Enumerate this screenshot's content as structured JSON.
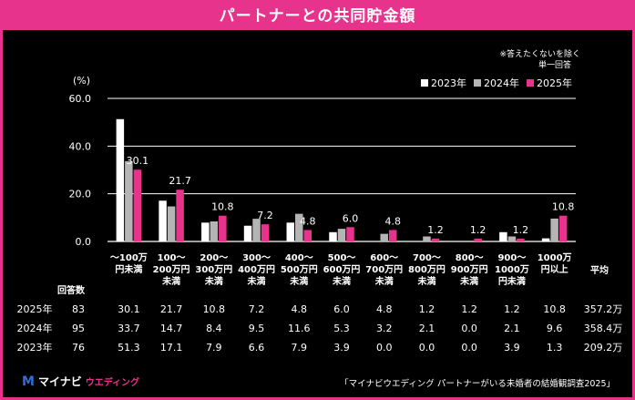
{
  "title": "パートナーとの共同貯金額",
  "note": [
    "※答えたくないを除く",
    "単一回答"
  ],
  "unit_label": "(%)",
  "colors": {
    "y2023": "#ffffff",
    "y2024": "#b5b5b5",
    "y2025": "#e8338d",
    "accent": "#e8338d"
  },
  "chart_data": {
    "type": "bar",
    "categories": [
      [
        "〜100万",
        "円未満"
      ],
      [
        "100〜",
        "200万円",
        "未満"
      ],
      [
        "200〜",
        "300万円",
        "未満"
      ],
      [
        "300〜",
        "400万円",
        "未満"
      ],
      [
        "400〜",
        "500万円",
        "未満"
      ],
      [
        "500〜",
        "600万円",
        "未満"
      ],
      [
        "600〜",
        "700万円",
        "未満"
      ],
      [
        "700〜",
        "800万円",
        "未満"
      ],
      [
        "800〜",
        "900万円",
        "未満"
      ],
      [
        "900〜",
        "1000万",
        "円未満"
      ],
      [
        "1000万",
        "円以上"
      ]
    ],
    "series": [
      {
        "name": "2023年",
        "values": [
          51.3,
          17.1,
          7.9,
          6.6,
          7.9,
          3.9,
          0.0,
          0.0,
          0.0,
          3.9,
          1.3
        ]
      },
      {
        "name": "2024年",
        "values": [
          33.7,
          14.7,
          8.4,
          9.5,
          11.6,
          5.3,
          3.2,
          2.1,
          0.0,
          2.1,
          9.6
        ]
      },
      {
        "name": "2025年",
        "values": [
          30.1,
          21.7,
          10.8,
          7.2,
          4.8,
          6.0,
          4.8,
          1.2,
          1.2,
          1.2,
          10.8
        ]
      }
    ],
    "data_labels_series": "2025年",
    "yticks": [
      "0.0",
      "20.0",
      "40.0",
      "60.0"
    ],
    "ylim": [
      0,
      60
    ],
    "grid": true,
    "legend": "top-right"
  },
  "table": {
    "header_left": "回答数",
    "header_right": "平均",
    "rows": [
      {
        "label": "2025年",
        "n": "83",
        "cells": [
          "30.1",
          "21.7",
          "10.8",
          "7.2",
          "4.8",
          "6.0",
          "4.8",
          "1.2",
          "1.2",
          "1.2",
          "10.8"
        ],
        "avg": "357.2万"
      },
      {
        "label": "2024年",
        "n": "95",
        "cells": [
          "33.7",
          "14.7",
          "8.4",
          "9.5",
          "11.6",
          "5.3",
          "3.2",
          "2.1",
          "0.0",
          "2.1",
          "9.6"
        ],
        "avg": "358.4万"
      },
      {
        "label": "2023年",
        "n": "76",
        "cells": [
          "51.3",
          "17.1",
          "7.9",
          "6.6",
          "7.9",
          "3.9",
          "0.0",
          "0.0",
          "0.0",
          "3.9",
          "1.3"
        ],
        "avg": "209.2万"
      }
    ]
  },
  "footer": {
    "logo_mark": "M",
    "logo_text": "マイナビ",
    "logo_sub": "ウエディング",
    "source": "「マイナビウエディング パートナーがいる未婚者の結婚観調査2025」"
  }
}
